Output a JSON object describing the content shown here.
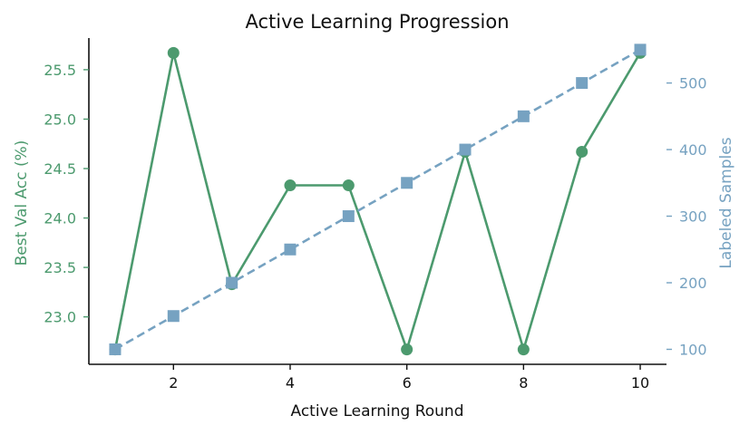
{
  "chart_data": {
    "type": "line",
    "title": "Active Learning Progression",
    "xlabel": "Active Learning Round",
    "ylabel_left": "Best Val Acc (%)",
    "ylabel_right": "Labeled Samples",
    "x": [
      1,
      2,
      3,
      4,
      5,
      6,
      7,
      8,
      9,
      10
    ],
    "xlim": [
      0.55,
      10.45
    ],
    "x_ticks": [
      2,
      4,
      6,
      8,
      10
    ],
    "ylim_left": [
      22.52,
      25.82
    ],
    "y_ticks_left": [
      23.0,
      23.5,
      24.0,
      24.5,
      25.0,
      25.5
    ],
    "ylim_right": [
      77.5,
      567.5
    ],
    "y_ticks_right": [
      100,
      200,
      300,
      400,
      500
    ],
    "grid": false,
    "series": [
      {
        "axis": "left",
        "values": [
          22.67,
          25.67,
          23.33,
          24.33,
          24.33,
          22.67,
          24.67,
          22.67,
          24.67,
          25.67
        ],
        "color": "#4c9a6e",
        "marker": "circle",
        "linestyle": "solid"
      },
      {
        "axis": "right",
        "values": [
          100,
          150,
          200,
          250,
          300,
          350,
          400,
          450,
          500,
          550
        ],
        "color": "#76a2c1",
        "marker": "square",
        "linestyle": "dashed"
      }
    ],
    "colors": {
      "left_axis": "#4c9a6e",
      "right_axis": "#76a2c1",
      "text": "#111111"
    }
  }
}
